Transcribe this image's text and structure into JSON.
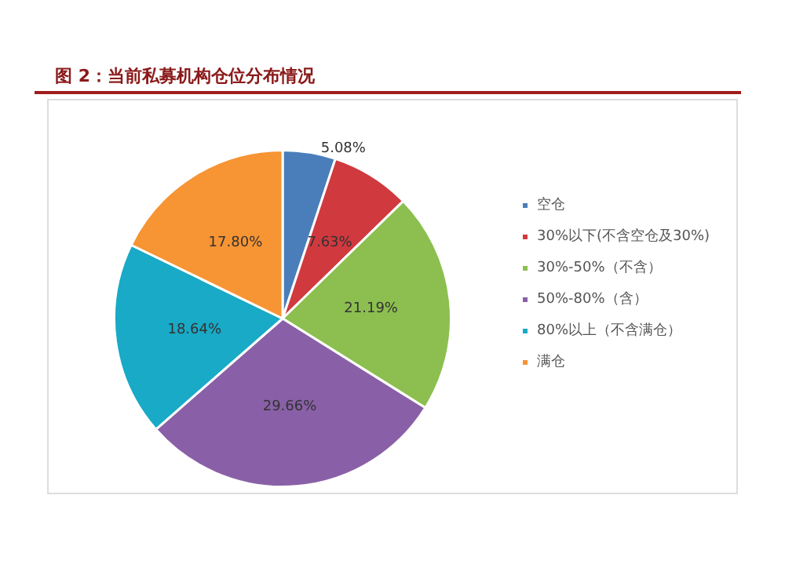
{
  "chart_data": {
    "type": "pie",
    "title": "图 2：当前私募机构仓位分布情况",
    "categories": [
      "空仓",
      "30%以下(不含空仓及30%)",
      "30%-50%（不含）",
      "50%-80%（含）",
      "80%以上（不含满仓）",
      "满仓"
    ],
    "values": [
      5.08,
      7.63,
      21.19,
      29.66,
      18.64,
      17.8
    ],
    "colors": [
      "#4a7ebb",
      "#d0393e",
      "#8cbf4f",
      "#8960a7",
      "#18aac6",
      "#f79433"
    ],
    "value_labels": [
      "5.08%",
      "7.63%",
      "21.19%",
      "29.66%",
      "18.64%",
      "17.80%"
    ],
    "legend": "right"
  }
}
